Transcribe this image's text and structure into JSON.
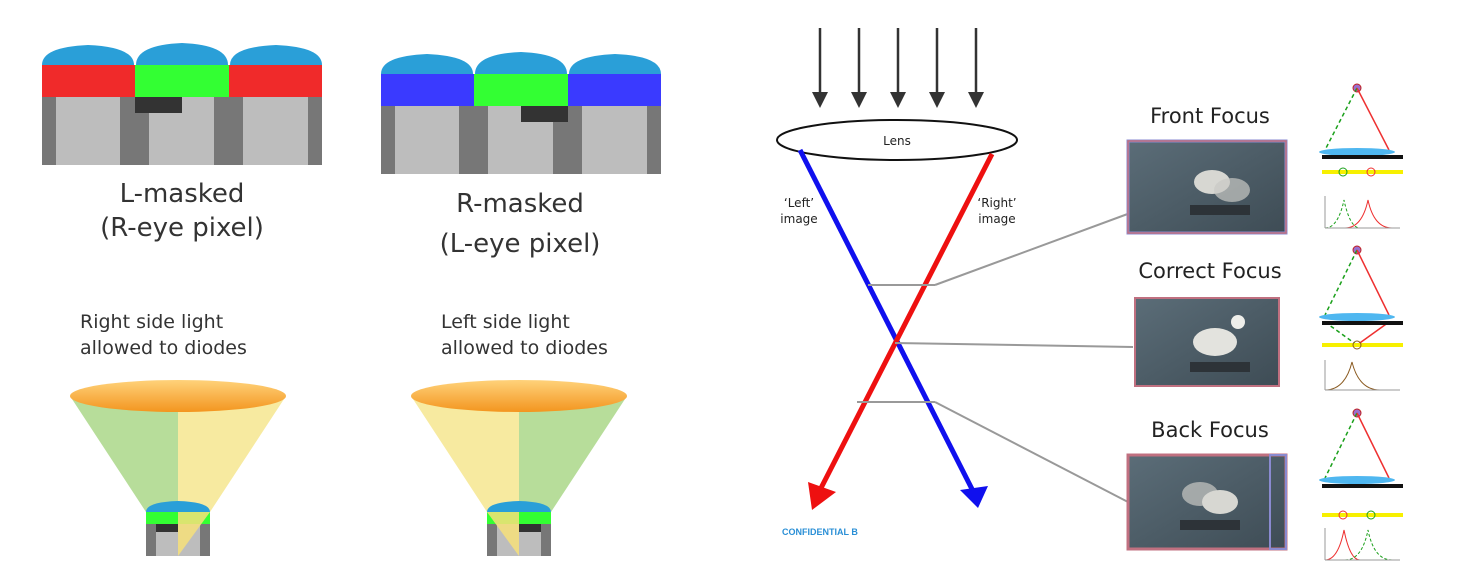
{
  "left_diagram": {
    "l_masked": {
      "title": "L-masked",
      "subtitle": "(R-eye pixel)",
      "note_line1": "Right side light",
      "note_line2": "allowed to diodes"
    },
    "r_masked": {
      "title": "R-masked",
      "subtitle": "(L-eye pixel)",
      "note_line1": "Left side light",
      "note_line2": "allowed to diodes"
    }
  },
  "right_diagram": {
    "lens_label": "Lens",
    "left_image_label_1": "‘Left’",
    "left_image_label_2": "image",
    "right_image_label_1": "‘Right’",
    "right_image_label_2": "image",
    "confidential": "CONFIDENTIAL B",
    "focus_states": [
      "Front Focus",
      "Correct Focus",
      "Back Focus"
    ]
  },
  "colors": {
    "microlens": "#2a9fd8",
    "red_filter": "#f02a2a",
    "green_filter": "#33ff33",
    "blue_filter": "#3a3aff",
    "left_ray": "#1010ee",
    "right_ray": "#ee1010",
    "cone_green": "#b7dd9a",
    "cone_yellow": "#f7eaa0",
    "lens_orange": "#f5a93a"
  }
}
